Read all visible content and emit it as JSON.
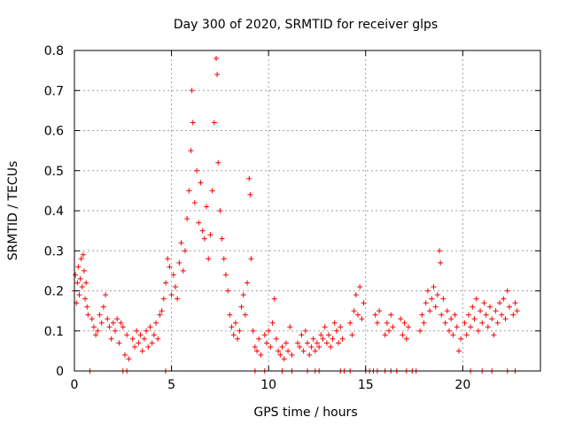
{
  "chart_data": {
    "type": "scatter",
    "title": "Day 300 of 2020, SRMTID for receiver glps",
    "xlabel": "GPS time / hours",
    "ylabel": "SRMTID / TECUs",
    "xlim": [
      0,
      24
    ],
    "ylim": [
      0,
      0.8
    ],
    "x_ticks": [
      0,
      5,
      10,
      15,
      20
    ],
    "x_tick_labels": [
      "0",
      "5",
      "10",
      "15",
      "20"
    ],
    "y_ticks": [
      0,
      0.1,
      0.2,
      0.3,
      0.4,
      0.5,
      0.6,
      0.7,
      0.8
    ],
    "y_tick_labels": [
      "0",
      "0.1",
      "0.2",
      "0.3",
      "0.4",
      "0.5",
      "0.6",
      "0.7",
      "0.8"
    ],
    "grid": true,
    "marker": "+",
    "color": "#ff0000",
    "series": [
      {
        "name": "SRMTID",
        "points": [
          [
            0.0,
            0.2
          ],
          [
            0.05,
            0.24
          ],
          [
            0.1,
            0.17
          ],
          [
            0.15,
            0.22
          ],
          [
            0.2,
            0.26
          ],
          [
            0.25,
            0.19
          ],
          [
            0.3,
            0.23
          ],
          [
            0.35,
            0.28
          ],
          [
            0.4,
            0.21
          ],
          [
            0.45,
            0.29
          ],
          [
            0.5,
            0.25
          ],
          [
            0.55,
            0.18
          ],
          [
            0.6,
            0.22
          ],
          [
            0.65,
            0.16
          ],
          [
            0.7,
            0.14
          ],
          [
            0.9,
            0.13
          ],
          [
            1.0,
            0.11
          ],
          [
            1.1,
            0.09
          ],
          [
            1.2,
            0.1
          ],
          [
            1.3,
            0.14
          ],
          [
            1.4,
            0.12
          ],
          [
            1.5,
            0.16
          ],
          [
            1.6,
            0.19
          ],
          [
            1.7,
            0.13
          ],
          [
            1.8,
            0.11
          ],
          [
            1.9,
            0.08
          ],
          [
            2.0,
            0.12
          ],
          [
            2.1,
            0.1
          ],
          [
            2.2,
            0.13
          ],
          [
            2.3,
            0.07
          ],
          [
            2.4,
            0.12
          ],
          [
            2.5,
            0.11
          ],
          [
            2.6,
            0.04
          ],
          [
            2.7,
            0.09
          ],
          [
            2.8,
            0.03
          ],
          [
            3.0,
            0.08
          ],
          [
            3.1,
            0.06
          ],
          [
            3.2,
            0.1
          ],
          [
            3.3,
            0.07
          ],
          [
            3.4,
            0.09
          ],
          [
            3.5,
            0.05
          ],
          [
            3.6,
            0.08
          ],
          [
            3.7,
            0.1
          ],
          [
            3.8,
            0.06
          ],
          [
            3.9,
            0.11
          ],
          [
            4.0,
            0.07
          ],
          [
            4.1,
            0.09
          ],
          [
            4.2,
            0.12
          ],
          [
            4.3,
            0.08
          ],
          [
            4.4,
            0.14
          ],
          [
            4.5,
            0.15
          ],
          [
            4.6,
            0.18
          ],
          [
            4.7,
            0.22
          ],
          [
            4.8,
            0.28
          ],
          [
            4.9,
            0.26
          ],
          [
            5.0,
            0.19
          ],
          [
            5.1,
            0.24
          ],
          [
            5.2,
            0.21
          ],
          [
            5.3,
            0.18
          ],
          [
            5.4,
            0.27
          ],
          [
            5.5,
            0.32
          ],
          [
            5.6,
            0.25
          ],
          [
            5.7,
            0.3
          ],
          [
            5.8,
            0.38
          ],
          [
            5.9,
            0.45
          ],
          [
            6.0,
            0.55
          ],
          [
            6.05,
            0.7
          ],
          [
            6.1,
            0.62
          ],
          [
            6.2,
            0.42
          ],
          [
            6.3,
            0.5
          ],
          [
            6.4,
            0.37
          ],
          [
            6.5,
            0.47
          ],
          [
            6.6,
            0.35
          ],
          [
            6.7,
            0.33
          ],
          [
            6.8,
            0.41
          ],
          [
            6.9,
            0.28
          ],
          [
            7.0,
            0.34
          ],
          [
            7.1,
            0.45
          ],
          [
            7.2,
            0.62
          ],
          [
            7.3,
            0.78
          ],
          [
            7.35,
            0.74
          ],
          [
            7.4,
            0.52
          ],
          [
            7.5,
            0.4
          ],
          [
            7.6,
            0.33
          ],
          [
            7.7,
            0.28
          ],
          [
            7.8,
            0.24
          ],
          [
            7.9,
            0.2
          ],
          [
            8.0,
            0.14
          ],
          [
            8.1,
            0.11
          ],
          [
            8.2,
            0.09
          ],
          [
            8.3,
            0.12
          ],
          [
            8.4,
            0.08
          ],
          [
            8.5,
            0.1
          ],
          [
            8.6,
            0.16
          ],
          [
            8.7,
            0.19
          ],
          [
            8.8,
            0.14
          ],
          [
            8.9,
            0.22
          ],
          [
            9.0,
            0.48
          ],
          [
            9.05,
            0.44
          ],
          [
            9.1,
            0.28
          ],
          [
            9.2,
            0.1
          ],
          [
            9.3,
            0.06
          ],
          [
            9.4,
            0.05
          ],
          [
            9.5,
            0.08
          ],
          [
            9.6,
            0.04
          ],
          [
            9.8,
            0.09
          ],
          [
            9.9,
            0.07
          ],
          [
            10.0,
            0.1
          ],
          [
            10.1,
            0.06
          ],
          [
            10.2,
            0.12
          ],
          [
            10.3,
            0.18
          ],
          [
            10.4,
            0.08
          ],
          [
            10.5,
            0.05
          ],
          [
            10.6,
            0.04
          ],
          [
            10.7,
            0.06
          ],
          [
            10.8,
            0.03
          ],
          [
            10.9,
            0.07
          ],
          [
            11.0,
            0.05
          ],
          [
            11.1,
            0.11
          ],
          [
            11.2,
            0.04
          ],
          [
            11.5,
            0.07
          ],
          [
            11.6,
            0.06
          ],
          [
            11.7,
            0.09
          ],
          [
            11.8,
            0.05
          ],
          [
            11.9,
            0.1
          ],
          [
            12.0,
            0.07
          ],
          [
            12.1,
            0.04
          ],
          [
            12.2,
            0.06
          ],
          [
            12.3,
            0.08
          ],
          [
            12.4,
            0.05
          ],
          [
            12.5,
            0.07
          ],
          [
            12.6,
            0.06
          ],
          [
            12.7,
            0.09
          ],
          [
            12.8,
            0.08
          ],
          [
            12.9,
            0.11
          ],
          [
            13.0,
            0.07
          ],
          [
            13.1,
            0.09
          ],
          [
            13.2,
            0.06
          ],
          [
            13.3,
            0.08
          ],
          [
            13.4,
            0.12
          ],
          [
            13.5,
            0.1
          ],
          [
            13.6,
            0.07
          ],
          [
            13.7,
            0.11
          ],
          [
            13.8,
            0.08
          ],
          [
            14.2,
            0.12
          ],
          [
            14.3,
            0.09
          ],
          [
            14.4,
            0.15
          ],
          [
            14.5,
            0.19
          ],
          [
            14.6,
            0.14
          ],
          [
            14.7,
            0.21
          ],
          [
            14.8,
            0.13
          ],
          [
            14.9,
            0.17
          ],
          [
            15.5,
            0.14
          ],
          [
            15.6,
            0.12
          ],
          [
            15.7,
            0.15
          ],
          [
            16.0,
            0.09
          ],
          [
            16.1,
            0.12
          ],
          [
            16.2,
            0.1
          ],
          [
            16.3,
            0.14
          ],
          [
            16.4,
            0.11
          ],
          [
            16.8,
            0.13
          ],
          [
            16.9,
            0.09
          ],
          [
            17.0,
            0.12
          ],
          [
            17.1,
            0.08
          ],
          [
            17.2,
            0.11
          ],
          [
            17.8,
            0.1
          ],
          [
            17.9,
            0.14
          ],
          [
            18.0,
            0.12
          ],
          [
            18.1,
            0.17
          ],
          [
            18.2,
            0.2
          ],
          [
            18.3,
            0.15
          ],
          [
            18.4,
            0.18
          ],
          [
            18.5,
            0.21
          ],
          [
            18.6,
            0.16
          ],
          [
            18.7,
            0.19
          ],
          [
            18.8,
            0.3
          ],
          [
            18.85,
            0.27
          ],
          [
            18.9,
            0.14
          ],
          [
            19.0,
            0.18
          ],
          [
            19.1,
            0.12
          ],
          [
            19.2,
            0.15
          ],
          [
            19.3,
            0.1
          ],
          [
            19.4,
            0.13
          ],
          [
            19.5,
            0.09
          ],
          [
            19.6,
            0.14
          ],
          [
            19.7,
            0.11
          ],
          [
            19.8,
            0.05
          ],
          [
            19.9,
            0.08
          ],
          [
            20.1,
            0.12
          ],
          [
            20.2,
            0.09
          ],
          [
            20.3,
            0.14
          ],
          [
            20.4,
            0.11
          ],
          [
            20.5,
            0.16
          ],
          [
            20.6,
            0.13
          ],
          [
            20.7,
            0.18
          ],
          [
            20.8,
            0.1
          ],
          [
            20.9,
            0.15
          ],
          [
            21.0,
            0.12
          ],
          [
            21.1,
            0.17
          ],
          [
            21.2,
            0.14
          ],
          [
            21.3,
            0.11
          ],
          [
            21.4,
            0.16
          ],
          [
            21.5,
            0.13
          ],
          [
            21.6,
            0.09
          ],
          [
            21.7,
            0.15
          ],
          [
            21.8,
            0.12
          ],
          [
            21.9,
            0.17
          ],
          [
            22.0,
            0.14
          ],
          [
            22.1,
            0.18
          ],
          [
            22.2,
            0.13
          ],
          [
            22.3,
            0.2
          ],
          [
            22.4,
            0.16
          ],
          [
            22.6,
            0.14
          ],
          [
            22.7,
            0.17
          ],
          [
            22.8,
            0.15
          ]
        ]
      }
    ],
    "zero_points_x": [
      0.8,
      2.5,
      2.7,
      4.7,
      9.3,
      9.8,
      10.7,
      11.2,
      12.0,
      12.4,
      12.6,
      13.7,
      13.9,
      14.2,
      15.0,
      15.2,
      15.4,
      15.6,
      16.0,
      16.3,
      16.6,
      17.1,
      17.4,
      17.6,
      20.4,
      21.0,
      21.5,
      22.3,
      22.7
    ]
  }
}
